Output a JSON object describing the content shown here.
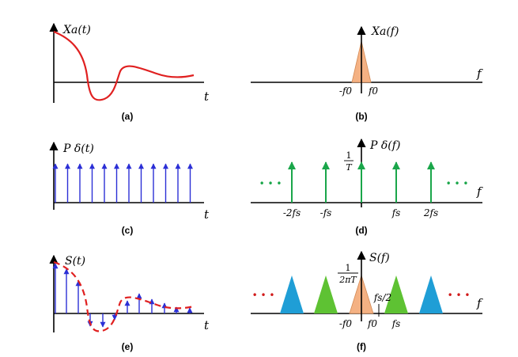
{
  "panels": {
    "a": {
      "caption": "(a)",
      "ylabel": "Xa(t)",
      "xlabel": "t"
    },
    "b": {
      "caption": "(b)",
      "ylabel": "Xa(f)",
      "xlabel": "f",
      "ticks": [
        "-f0",
        "f0"
      ]
    },
    "c": {
      "caption": "(c)",
      "ylabel": "P δ(t)",
      "xlabel": "t"
    },
    "d": {
      "caption": "(d)",
      "ylabel": "P δ(f)",
      "xlabel": "f",
      "height_num": "1",
      "height_den": "T",
      "ticks": [
        "-2fs",
        "-fs",
        "fs",
        "2fs"
      ],
      "ellipsis": "• • •"
    },
    "e": {
      "caption": "(e)",
      "ylabel": "S(t)",
      "xlabel": "t"
    },
    "f": {
      "caption": "(f)",
      "ylabel": "S(f)",
      "xlabel": "f",
      "height_num": "1",
      "height_den": "2πT",
      "ticks": [
        "-f0",
        "f0",
        "fs"
      ],
      "half_rate": "fs/2",
      "ellipsis": "• • •"
    }
  },
  "colors": {
    "signal": "#e02020",
    "impulse_time": "#2b2fd6",
    "impulse_freq": "#1aa64a",
    "dots_green": "#1aa64a",
    "dots_red": "#d11a1a",
    "spectrum_base": "#f4b183",
    "spectrum_alias_near": "#5ec233",
    "spectrum_alias_far": "#1f9ed6"
  }
}
